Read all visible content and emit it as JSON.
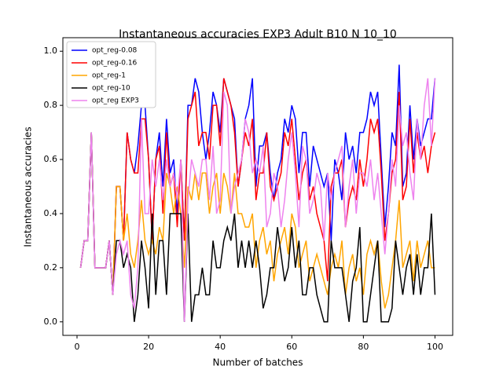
{
  "chart_data": {
    "type": "line",
    "title": "Instantaneous accuracies EXP3 Adult B10 N 10_10",
    "x_label": "Number of batches",
    "y_label": "Instantaneous accuracies",
    "x": [
      1,
      2,
      3,
      4,
      5,
      6,
      7,
      8,
      9,
      10,
      11,
      12,
      13,
      14,
      15,
      16,
      17,
      18,
      19,
      20,
      21,
      22,
      23,
      24,
      25,
      26,
      27,
      28,
      29,
      30,
      31,
      32,
      33,
      34,
      35,
      36,
      37,
      38,
      39,
      40,
      41,
      42,
      43,
      44,
      45,
      46,
      47,
      48,
      49,
      50,
      51,
      52,
      53,
      54,
      55,
      56,
      57,
      58,
      59,
      60,
      61,
      62,
      63,
      64,
      65,
      66,
      67,
      68,
      69,
      70,
      71,
      72,
      73,
      74,
      75,
      76,
      77,
      78,
      79,
      80,
      81,
      82,
      83,
      84,
      85,
      86,
      87,
      88,
      89,
      90,
      91,
      92,
      93,
      94,
      95,
      96,
      97,
      98,
      99,
      100
    ],
    "series": [
      {
        "name": "opt_reg-0.08",
        "color": "#0000ff",
        "values": [
          0.2,
          0.3,
          0.3,
          0.7,
          0.2,
          0.2,
          0.2,
          0.2,
          0.3,
          0.1,
          0.5,
          0.5,
          0.3,
          0.7,
          0.6,
          0.55,
          0.65,
          0.8,
          0.8,
          0.6,
          0.3,
          0.6,
          0.7,
          0.5,
          0.75,
          0.55,
          0.6,
          0.4,
          0.6,
          0.3,
          0.8,
          0.8,
          0.9,
          0.85,
          0.7,
          0.6,
          0.7,
          0.85,
          0.8,
          0.7,
          0.9,
          0.85,
          0.8,
          0.75,
          0.5,
          0.6,
          0.75,
          0.8,
          0.9,
          0.5,
          0.65,
          0.65,
          0.7,
          0.55,
          0.45,
          0.55,
          0.6,
          0.75,
          0.7,
          0.8,
          0.75,
          0.55,
          0.7,
          0.7,
          0.5,
          0.65,
          0.6,
          0.55,
          0.5,
          0.55,
          0.3,
          0.6,
          0.55,
          0.45,
          0.7,
          0.6,
          0.65,
          0.55,
          0.7,
          0.7,
          0.75,
          0.85,
          0.8,
          0.85,
          0.6,
          0.35,
          0.5,
          0.7,
          0.65,
          0.95,
          0.5,
          0.55,
          0.8,
          0.6,
          0.75,
          0.65,
          0.7,
          0.75,
          0.75,
          0.9
        ]
      },
      {
        "name": "opt_reg-0.16",
        "color": "#ff0000",
        "values": [
          0.2,
          0.3,
          0.3,
          0.7,
          0.2,
          0.2,
          0.2,
          0.2,
          0.3,
          0.1,
          0.5,
          0.5,
          0.3,
          0.7,
          0.6,
          0.55,
          0.55,
          0.75,
          0.75,
          0.6,
          0.3,
          0.6,
          0.65,
          0.4,
          0.7,
          0.5,
          0.55,
          0.35,
          0.6,
          0.3,
          0.75,
          0.8,
          0.85,
          0.65,
          0.7,
          0.7,
          0.6,
          0.8,
          0.8,
          0.65,
          0.9,
          0.85,
          0.8,
          0.7,
          0.5,
          0.6,
          0.7,
          0.65,
          0.75,
          0.45,
          0.55,
          0.55,
          0.7,
          0.5,
          0.45,
          0.5,
          0.55,
          0.7,
          0.65,
          0.75,
          0.6,
          0.45,
          0.55,
          0.6,
          0.45,
          0.5,
          0.4,
          0.35,
          0.3,
          0.15,
          0.5,
          0.55,
          0.55,
          0.6,
          0.35,
          0.45,
          0.5,
          0.45,
          0.6,
          0.5,
          0.6,
          0.75,
          0.7,
          0.75,
          0.55,
          0.3,
          0.4,
          0.55,
          0.6,
          0.85,
          0.45,
          0.5,
          0.75,
          0.55,
          0.7,
          0.6,
          0.65,
          0.55,
          0.65,
          0.7
        ]
      },
      {
        "name": "opt_reg-1",
        "color": "#ffa500",
        "values": [
          0.2,
          0.3,
          0.3,
          0.7,
          0.2,
          0.2,
          0.2,
          0.2,
          0.3,
          0.1,
          0.5,
          0.5,
          0.3,
          0.4,
          0.25,
          0.2,
          0.3,
          0.45,
          0.3,
          0.25,
          0.3,
          0.25,
          0.35,
          0.3,
          0.55,
          0.5,
          0.4,
          0.5,
          0.4,
          0.2,
          0.5,
          0.45,
          0.55,
          0.45,
          0.55,
          0.55,
          0.4,
          0.5,
          0.55,
          0.4,
          0.55,
          0.5,
          0.4,
          0.55,
          0.4,
          0.4,
          0.35,
          0.35,
          0.4,
          0.2,
          0.3,
          0.35,
          0.25,
          0.3,
          0.15,
          0.25,
          0.3,
          0.35,
          0.25,
          0.4,
          0.35,
          0.2,
          0.25,
          0.3,
          0.15,
          0.2,
          0.25,
          0.2,
          0.15,
          0.1,
          0.2,
          0.25,
          0.2,
          0.3,
          0.1,
          0.2,
          0.25,
          0.15,
          0.2,
          0.1,
          0.25,
          0.3,
          0.25,
          0.3,
          0.15,
          0.05,
          0.1,
          0.2,
          0.3,
          0.45,
          0.2,
          0.25,
          0.3,
          0.15,
          0.3,
          0.2,
          0.25,
          0.3,
          0.2,
          0.2
        ]
      },
      {
        "name": "opt_reg-10",
        "color": "#000000",
        "values": [
          0.2,
          0.3,
          0.3,
          0.7,
          0.2,
          0.2,
          0.2,
          0.2,
          0.3,
          0.1,
          0.3,
          0.3,
          0.2,
          0.25,
          0.2,
          0,
          0.1,
          0.3,
          0.2,
          0.05,
          0.4,
          0.1,
          0.3,
          0.3,
          0.1,
          0.4,
          0.4,
          0.4,
          0.4,
          0,
          0.4,
          0,
          0.1,
          0.1,
          0.2,
          0.1,
          0.1,
          0.3,
          0.2,
          0.2,
          0.3,
          0.35,
          0.3,
          0.4,
          0.2,
          0.3,
          0.2,
          0.3,
          0.2,
          0.3,
          0.2,
          0.05,
          0.1,
          0.2,
          0.2,
          0.35,
          0.25,
          0.15,
          0.2,
          0.35,
          0.2,
          0.3,
          0.1,
          0.1,
          0.2,
          0.2,
          0.1,
          0.05,
          0,
          0,
          0.3,
          0.2,
          0.2,
          0.2,
          0.1,
          0,
          0.15,
          0.2,
          0.35,
          0,
          0,
          0.1,
          0.2,
          0.3,
          0,
          0,
          0,
          0.05,
          0.3,
          0.2,
          0.1,
          0.2,
          0.25,
          0.1,
          0.25,
          0.1,
          0.2,
          0.2,
          0.4,
          0.1
        ]
      },
      {
        "name": "opt_reg EXP3",
        "color": "#ee82ee",
        "values": [
          0.2,
          0.3,
          0.3,
          0.7,
          0.2,
          0.2,
          0.2,
          0.2,
          0.3,
          0.1,
          0.25,
          0.3,
          0.25,
          0.3,
          0.1,
          0.05,
          0.2,
          0.75,
          0.4,
          0.4,
          0.6,
          0.5,
          0.6,
          0.45,
          0.6,
          0.5,
          0.55,
          0.45,
          0.6,
          0,
          0.45,
          0.6,
          0.55,
          0.5,
          0.6,
          0.6,
          0.45,
          0.65,
          0.4,
          0.45,
          0.85,
          0.8,
          0.4,
          0.5,
          0.55,
          0.6,
          0.75,
          0.7,
          0.55,
          0.6,
          0.55,
          0.65,
          0.35,
          0.4,
          0.55,
          0.5,
          0.35,
          0.45,
          0.6,
          0.7,
          0.55,
          0.35,
          0.65,
          0.6,
          0.4,
          0.45,
          0.55,
          0.5,
          0.3,
          0.55,
          0.45,
          0.55,
          0.6,
          0.65,
          0.35,
          0.5,
          0.6,
          0.4,
          0.55,
          0.55,
          0.5,
          0.6,
          0.45,
          0.55,
          0.4,
          0.25,
          0.4,
          0.6,
          0.5,
          0.8,
          0.65,
          0.7,
          0.55,
          0.45,
          0.75,
          0.6,
          0.8,
          0.9,
          0.65,
          0.9
        ]
      }
    ],
    "xlim": [
      -3.95,
      104.95
    ],
    "xticks": [
      0,
      20,
      40,
      60,
      80,
      100
    ],
    "ylim": [
      -0.05,
      1.05
    ],
    "yticks": [
      {
        "value": 0,
        "label": "0.0"
      },
      {
        "value": 0.2,
        "label": "0.2"
      },
      {
        "value": 0.4,
        "label": "0.4"
      },
      {
        "value": 0.6,
        "label": "0.6"
      },
      {
        "value": 0.8,
        "label": "0.8"
      },
      {
        "value": 1,
        "label": "1.0"
      }
    ],
    "legend": "upper left"
  }
}
